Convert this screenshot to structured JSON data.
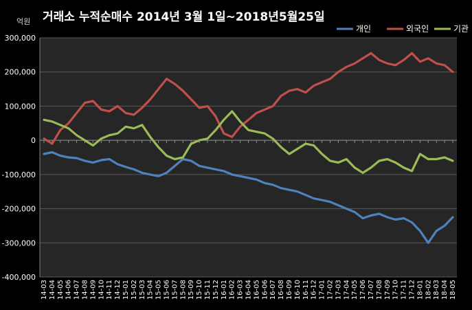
{
  "chart_data": {
    "type": "line",
    "title": "거래소 누적순매수 2014년 3월 1일~2018년5월25일",
    "unit_label": "억원",
    "ylim": [
      -400000,
      300000
    ],
    "y_ticks": [
      300000,
      200000,
      100000,
      0,
      -100000,
      -200000,
      -300000,
      -400000
    ],
    "y_tick_labels": [
      "300,000",
      "200,000",
      "100,000",
      "0",
      "-100,000",
      "-200,000",
      "-300,000",
      "-400,000"
    ],
    "x_tick_labels": [
      "14-03",
      "14-04",
      "14-05",
      "14-06",
      "14-07",
      "14-08",
      "14-09",
      "14-10",
      "14-11",
      "14-12",
      "15-01",
      "15-02",
      "15-03",
      "15-04",
      "15-05",
      "15-06",
      "15-07",
      "15-08",
      "15-09",
      "15-10",
      "15-11",
      "15-12",
      "16-01",
      "16-02",
      "16-03",
      "16-04",
      "16-05",
      "16-06",
      "16-07",
      "16-08",
      "16-09",
      "16-10",
      "16-11",
      "16-12",
      "17-01",
      "17-02",
      "17-03",
      "17-04",
      "17-05",
      "17-06",
      "17-07",
      "17-08",
      "17-09",
      "17-10",
      "17-11",
      "17-12",
      "18-01",
      "18-02",
      "18-03",
      "18-04",
      "18-05"
    ],
    "grid": true,
    "legend_position": "top-right",
    "series": [
      {
        "name": "개인",
        "color": "#4f81bd",
        "values": [
          -40000,
          -35000,
          -45000,
          -50000,
          -52000,
          -60000,
          -65000,
          -58000,
          -55000,
          -70000,
          -78000,
          -85000,
          -95000,
          -100000,
          -105000,
          -95000,
          -75000,
          -55000,
          -60000,
          -75000,
          -80000,
          -85000,
          -90000,
          -100000,
          -105000,
          -110000,
          -115000,
          -125000,
          -130000,
          -140000,
          -145000,
          -150000,
          -160000,
          -170000,
          -175000,
          -180000,
          -190000,
          -200000,
          -210000,
          -228000,
          -220000,
          -215000,
          -225000,
          -232000,
          -228000,
          -240000,
          -265000,
          -300000,
          -265000,
          -250000,
          -225000
        ]
      },
      {
        "name": "외국인",
        "color": "#c0504d",
        "values": [
          5000,
          -10000,
          30000,
          50000,
          80000,
          110000,
          115000,
          90000,
          85000,
          100000,
          80000,
          75000,
          95000,
          120000,
          150000,
          180000,
          165000,
          145000,
          120000,
          95000,
          100000,
          70000,
          20000,
          10000,
          40000,
          60000,
          80000,
          90000,
          100000,
          130000,
          145000,
          150000,
          140000,
          160000,
          170000,
          180000,
          200000,
          215000,
          225000,
          240000,
          255000,
          235000,
          225000,
          220000,
          235000,
          255000,
          230000,
          240000,
          225000,
          220000,
          200000
        ]
      },
      {
        "name": "기관",
        "color": "#9bbb59",
        "values": [
          60000,
          55000,
          45000,
          35000,
          15000,
          0,
          -15000,
          5000,
          15000,
          20000,
          40000,
          35000,
          45000,
          10000,
          -20000,
          -45000,
          -55000,
          -50000,
          -10000,
          0,
          5000,
          30000,
          60000,
          85000,
          55000,
          30000,
          25000,
          20000,
          5000,
          -20000,
          -40000,
          -25000,
          -10000,
          -15000,
          -40000,
          -60000,
          -65000,
          -55000,
          -80000,
          -95000,
          -80000,
          -60000,
          -55000,
          -65000,
          -80000,
          -90000,
          -40000,
          -55000,
          -55000,
          -50000,
          -60000
        ]
      }
    ]
  }
}
